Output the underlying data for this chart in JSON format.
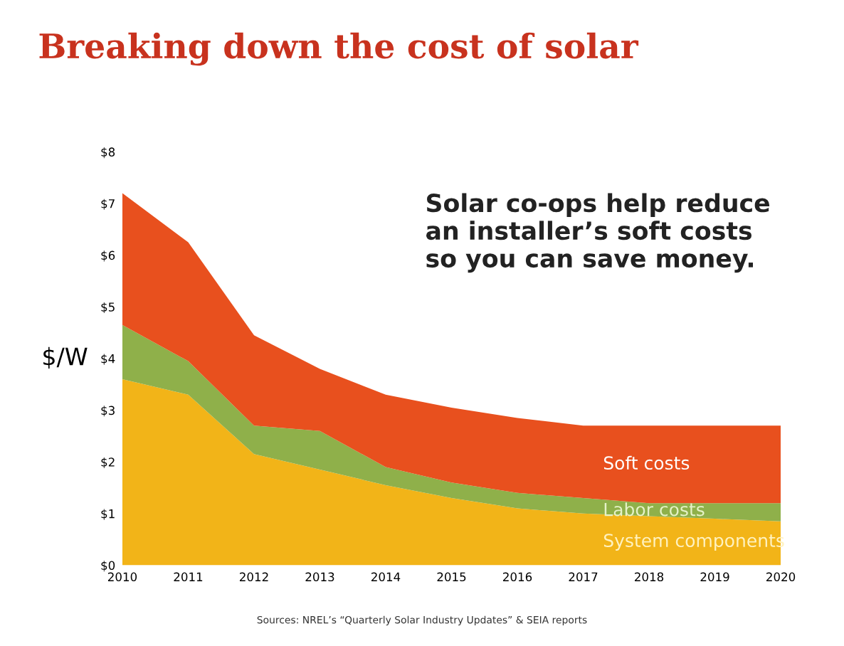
{
  "chart_data": {
    "type": "area",
    "stacked": true,
    "title": "Breaking down the cost of solar",
    "ylabel": "$/W",
    "x": [
      2010,
      2011,
      2012,
      2013,
      2014,
      2015,
      2016,
      2017,
      2018,
      2019,
      2020
    ],
    "series": [
      {
        "name": "System components",
        "color": "#f2b418",
        "values": [
          3.6,
          3.3,
          2.15,
          1.85,
          1.55,
          1.3,
          1.1,
          1.0,
          0.95,
          0.9,
          0.85
        ]
      },
      {
        "name": "Labor costs",
        "color": "#8fb04a",
        "values": [
          1.05,
          0.65,
          0.55,
          0.75,
          0.35,
          0.3,
          0.3,
          0.3,
          0.25,
          0.3,
          0.35
        ]
      },
      {
        "name": "Soft costs",
        "color": "#e8501e",
        "values": [
          2.55,
          2.3,
          1.75,
          1.2,
          1.4,
          1.45,
          1.45,
          1.4,
          1.5,
          1.5,
          1.5
        ]
      }
    ],
    "xlim": [
      2010,
      2020
    ],
    "ylim": [
      0,
      8
    ],
    "xticks": [
      2010,
      2011,
      2012,
      2013,
      2014,
      2015,
      2016,
      2017,
      2018,
      2019,
      2020
    ],
    "yticks": [
      {
        "value": 0,
        "label": "$0"
      },
      {
        "value": 1,
        "label": "$1"
      },
      {
        "value": 2,
        "label": "$2"
      },
      {
        "value": 3,
        "label": "$3"
      },
      {
        "value": 4,
        "label": "$4"
      },
      {
        "value": 5,
        "label": "$5"
      },
      {
        "value": 6,
        "label": "$6"
      },
      {
        "value": 7,
        "label": "$7"
      },
      {
        "value": 8,
        "label": "$8"
      }
    ],
    "grid": false,
    "legend": false,
    "annotations": [
      "Solar co-ops help reduce\nan installer’s soft costs\nso you can save money.",
      "Sources: NREL’s “Quarterly Solar Industry Updates” & SEIA reports"
    ]
  }
}
